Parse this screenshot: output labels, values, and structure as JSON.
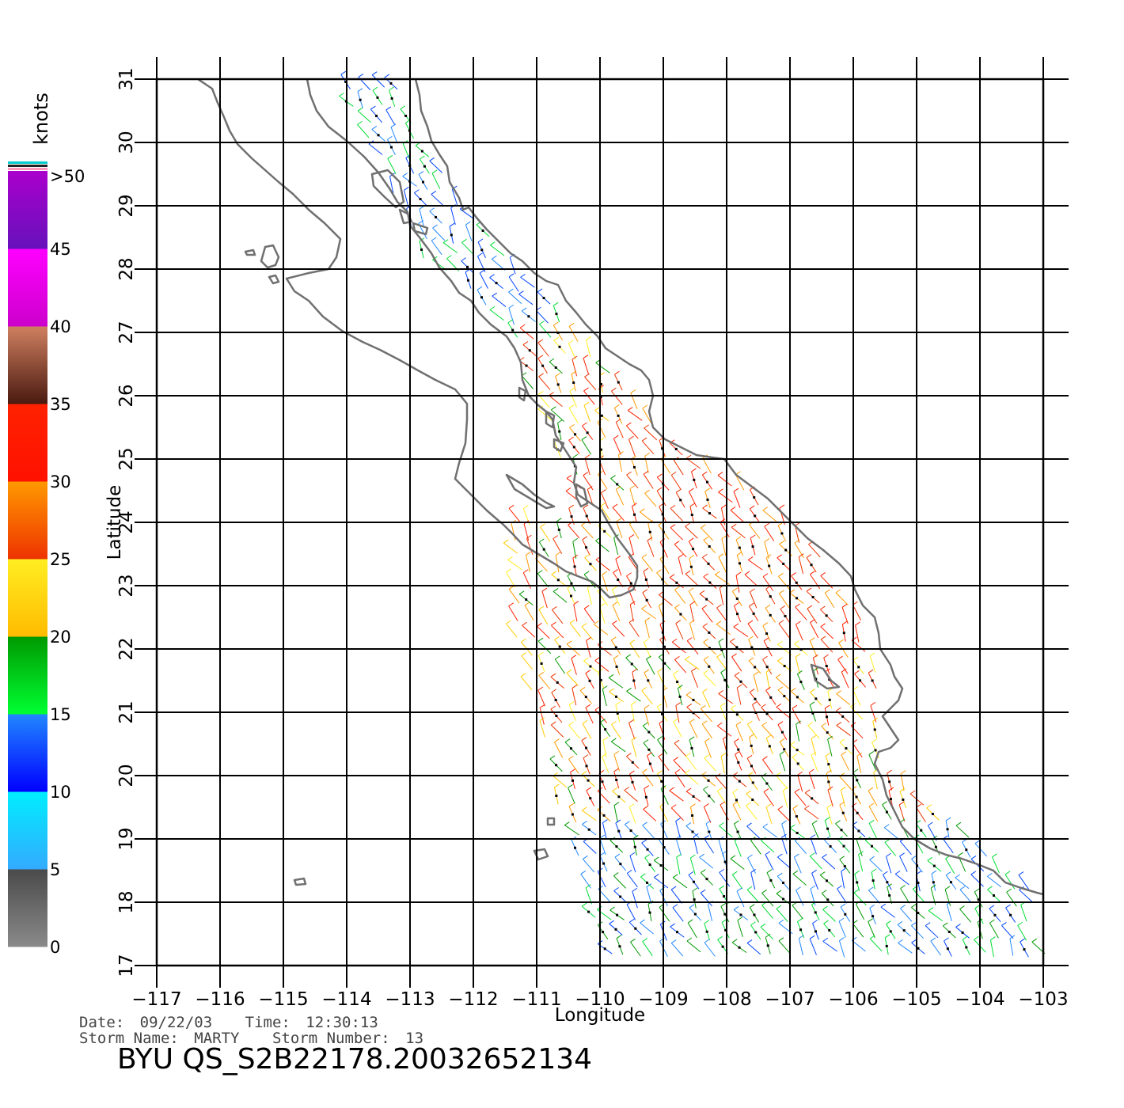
{
  "axes": {
    "xlabel": "Longitude",
    "ylabel": "Latitude",
    "lon_ticks": [
      -117,
      -116,
      -115,
      -114,
      -113,
      -112,
      -111,
      -110,
      -109,
      -108,
      -107,
      -106,
      -105,
      -104,
      -103
    ],
    "lat_ticks": [
      17,
      18,
      19,
      20,
      21,
      22,
      23,
      24,
      25,
      26,
      27,
      28,
      29,
      30,
      31
    ],
    "lon_range": [
      -117,
      -103
    ],
    "lat_range": [
      17,
      31
    ],
    "grid": true
  },
  "colorbar": {
    "title": "knots",
    "max_label": ">50",
    "bands": [
      {
        "label": "0",
        "top": "#4a4a4a",
        "bottom": "#8a8a8a"
      },
      {
        "label": "5",
        "top": "#00eeff",
        "bottom": "#33aaff"
      },
      {
        "label": "10",
        "top": "#2288ff",
        "bottom": "#0000ff"
      },
      {
        "label": "15",
        "top": "#009900",
        "bottom": "#00ff33"
      },
      {
        "label": "20",
        "top": "#ffee22",
        "bottom": "#ffbb00"
      },
      {
        "label": "25",
        "top": "#ff9900",
        "bottom": "#ee3300"
      },
      {
        "label": "30",
        "top": "#ff2200",
        "bottom": "#ff1100"
      },
      {
        "label": "35",
        "top": "#d08060",
        "bottom": "#4a1a10"
      },
      {
        "label": "40",
        "top": "#ff00ff",
        "bottom": "#cc00cc"
      },
      {
        "label": "45",
        "top": "#aa00cc",
        "bottom": "#6611bb"
      }
    ],
    "top_lines": [
      "#ff99bb",
      "#222222",
      "#00cccc"
    ]
  },
  "footer": {
    "date_label": "Date:",
    "date": "09/22/03",
    "time_label": "Time:",
    "time": "12:30:13",
    "storm_name_label": "Storm  Name:",
    "storm_name": "MARTY",
    "storm_number_label": "Storm  Number:",
    "storm_number": "13",
    "product": "BYU  QS_S2B22178.20032652134"
  },
  "colors": {
    "coast": "#707070",
    "grid": "#000000"
  }
}
